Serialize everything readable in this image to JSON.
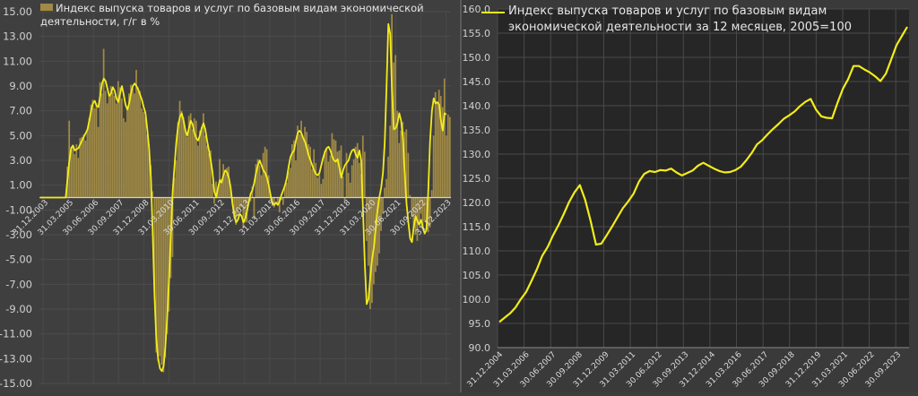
{
  "chart_data": [
    {
      "type": "bar+line",
      "title": "Индекс выпуска товаров и услуг по базовым видам экономической деятельности, г/г в %",
      "legend": [
        "Индекс выпуска товаров и услуг по базовым видам экономической деятельности, г/г в %"
      ],
      "legend_position": "top-left-inside",
      "xlabel": "",
      "ylabel": "",
      "ylim": [
        -15,
        15
      ],
      "y_ticks": [
        "15.00",
        "13.00",
        "11.00",
        "9.00",
        "7.00",
        "5.00",
        "3.00",
        "1.00",
        "-1.00",
        "-3.00",
        "-5.00",
        "-7.00",
        "-9.00",
        "-11.00",
        "-13.00",
        "-15.00"
      ],
      "x_ticks": [
        "31.12.2003",
        "31.03.2005",
        "30.06.2006",
        "30.09.2007",
        "31.12.2008",
        "31.03.2010",
        "30.06.2011",
        "30.09.2012",
        "31.12.2013",
        "31.03.2015",
        "30.06.2016",
        "30.09.2017",
        "31.12.2018",
        "31.03.2020",
        "30.06.2021",
        "30.09.2022",
        "31.12.2023"
      ],
      "grid": true,
      "bar_color": "#a08a45",
      "line_color": "#f2ec1a",
      "series_note": "Monthly bars (y/y %) with smoothed yellow line; values estimated from pixels",
      "series": [
        {
          "name": "bars_yoy_pct",
          "x_start": "2004-01",
          "frequency": "monthly",
          "values": [
            0,
            0,
            0,
            0,
            0,
            0,
            0,
            0,
            0,
            0,
            0,
            0,
            0,
            0,
            0,
            2.5,
            6.2,
            3.8,
            4.2,
            3.5,
            4.3,
            3.2,
            4.8,
            4.9,
            5.1,
            4.6,
            5.5,
            6.4,
            7.5,
            7.9,
            7.2,
            7.6,
            5.7,
            9.3,
            8.4,
            12.0,
            8.6,
            7.6,
            8.3,
            9.0,
            8.5,
            8.2,
            7.6,
            9.4,
            8.9,
            8.0,
            6.4,
            6.1,
            7.1,
            8.4,
            9.1,
            8.8,
            8.4,
            10.3,
            8.9,
            8.6,
            7.2,
            6.9,
            6.5,
            5.1,
            4.3,
            2.6,
            0.5,
            -7.5,
            -12.5,
            -13.2,
            -12.8,
            -13.5,
            -14.1,
            -12.9,
            -11.0,
            -9.2,
            -6.5,
            -4.8,
            1.6,
            3.0,
            6.1,
            7.8,
            7.0,
            6.5,
            5.5,
            4.9,
            6.6,
            6.8,
            5.5,
            6.4,
            6.2,
            4.2,
            5.4,
            5.7,
            6.8,
            5.0,
            4.2,
            3.6,
            3.8,
            1.1,
            -0.5,
            1.3,
            0.8,
            3.1,
            1.5,
            2.7,
            1.9,
            2.4,
            2.5,
            0.9,
            -0.3,
            -1.6,
            -2.2,
            -1.5,
            -1.0,
            -0.8,
            -2.5,
            -2.0,
            -2.0,
            -0.5,
            -0.3,
            0.9,
            -1.7,
            2.7,
            3.1,
            2.6,
            1.8,
            3.6,
            4.1,
            3.9,
            1.8,
            0.2,
            -0.5,
            -0.8,
            0.0,
            -0.5,
            -1.2,
            -0.2,
            -0.6,
            1.0,
            1.2,
            2.1,
            2.4,
            4.3,
            4.6,
            3.0,
            5.8,
            5.1,
            6.2,
            4.8,
            5.7,
            5.3,
            4.3,
            4.1,
            2.3,
            3.9,
            2.8,
            1.6,
            1.9,
            1.1,
            1.5,
            3.8,
            4.0,
            2.9,
            3.4,
            5.2,
            4.7,
            4.6,
            3.7,
            3.8,
            4.2,
            1.7,
            -0.2,
            3.6,
            2.0,
            1.2,
            2.6,
            3.1,
            4.1,
            4.4,
            2.8,
            1.9,
            5.0,
            3.7,
            -3.5,
            -5.5,
            -9.0,
            -8.5,
            -7.0,
            -6.0,
            -5.5,
            -4.5,
            -2.7,
            -1.3,
            0.8,
            1.5,
            3.3,
            5.8,
            14.8,
            10.9,
            11.5,
            7.0,
            4.4,
            5.4,
            6.1,
            5.3,
            5.5,
            3.6,
            0.2,
            -1.5,
            -2.5,
            -3.0,
            -3.5,
            -2.0,
            -1.3,
            -2.6,
            -1.9,
            -2.0,
            -2.8,
            -2.4,
            0.6,
            5.0,
            8.5,
            7.6,
            8.7,
            8.2,
            7.3,
            9.6,
            5.0,
            6.7,
            6.5
          ]
        },
        {
          "name": "smoothed_line_yoy_pct",
          "x_start": "2004-01",
          "frequency": "monthly",
          "values": [
            0,
            0,
            0,
            0,
            0,
            0,
            0,
            0,
            0,
            0,
            0,
            0,
            0,
            0,
            0,
            1.5,
            3.0,
            4.0,
            4.2,
            3.8,
            3.9,
            4.0,
            4.3,
            4.6,
            4.9,
            5.2,
            5.5,
            6.2,
            7.0,
            7.6,
            7.8,
            7.4,
            7.3,
            8.2,
            9.2,
            9.6,
            9.4,
            8.8,
            8.2,
            8.4,
            8.9,
            8.6,
            8.0,
            7.7,
            8.4,
            9.0,
            8.3,
            7.5,
            7.1,
            7.6,
            8.4,
            9.0,
            9.2,
            9.0,
            8.7,
            8.3,
            7.9,
            7.3,
            6.8,
            5.5,
            4.0,
            1.5,
            -3.0,
            -8.0,
            -11.5,
            -13.0,
            -13.8,
            -14.0,
            -13.6,
            -12.0,
            -9.5,
            -6.5,
            -3.0,
            0.5,
            2.5,
            4.5,
            5.8,
            6.5,
            6.8,
            6.2,
            5.4,
            5.0,
            5.6,
            6.2,
            5.9,
            5.2,
            4.8,
            4.6,
            5.0,
            5.6,
            6.0,
            5.5,
            4.6,
            3.8,
            3.0,
            2.0,
            0.5,
            0.0,
            0.8,
            1.4,
            1.2,
            1.8,
            2.2,
            2.0,
            1.6,
            0.8,
            -0.5,
            -1.5,
            -2.0,
            -1.8,
            -1.3,
            -1.5,
            -2.0,
            -1.7,
            -1.1,
            -0.4,
            0.3,
            0.6,
            1.2,
            2.0,
            2.6,
            3.0,
            2.6,
            2.2,
            2.0,
            1.6,
            1.0,
            0.2,
            -0.5,
            -0.6,
            -0.4,
            -0.6,
            -0.3,
            0.2,
            0.6,
            1.0,
            1.6,
            2.5,
            3.3,
            3.6,
            3.8,
            4.6,
            5.2,
            5.4,
            5.2,
            4.8,
            4.5,
            4.0,
            3.4,
            3.0,
            2.6,
            2.2,
            1.9,
            1.8,
            2.0,
            2.6,
            3.2,
            3.7,
            4.0,
            4.1,
            3.8,
            3.3,
            3.0,
            2.9,
            3.1,
            2.4,
            1.6,
            2.2,
            2.6,
            2.8,
            3.0,
            3.5,
            3.8,
            3.9,
            3.5,
            3.2,
            3.8,
            3.0,
            -1.0,
            -5.5,
            -8.6,
            -8.2,
            -6.5,
            -5.0,
            -4.0,
            -2.5,
            -1.0,
            0.0,
            0.8,
            2.0,
            4.5,
            9.0,
            14.0,
            13.2,
            8.5,
            5.5,
            5.6,
            6.0,
            6.8,
            6.2,
            4.8,
            2.0,
            -0.5,
            -2.0,
            -3.3,
            -3.6,
            -2.4,
            -1.5,
            -1.9,
            -2.2,
            -1.8,
            -2.4,
            -2.9,
            -2.6,
            0.5,
            4.5,
            7.0,
            8.0,
            7.6,
            7.7,
            7.5,
            6.2,
            5.4,
            6.8,
            6.7
          ]
        }
      ]
    },
    {
      "type": "line",
      "title": "Индекс выпуска товаров и услуг по базовым видам экономической деятельности за 12 месяцев, 2005=100",
      "legend": [
        "Индекс выпуска товаров и услуг по базовым видам экономической деятельности за 12 месяцев, 2005=100"
      ],
      "legend_position": "top-left-inside",
      "xlabel": "",
      "ylabel": "",
      "ylim": [
        90,
        160
      ],
      "y_ticks": [
        "160.0",
        "155.0",
        "150.0",
        "145.0",
        "140.0",
        "135.0",
        "130.0",
        "125.0",
        "120.0",
        "115.0",
        "110.0",
        "105.0",
        "100.0",
        "95.0",
        "90.0"
      ],
      "x_ticks": [
        "31.12.2004",
        "31.03.2006",
        "30.06.2007",
        "30.09.2008",
        "31.12.2009",
        "31.03.2011",
        "30.06.2012",
        "30.09.2013",
        "31.12.2014",
        "31.03.2016",
        "30.06.2017",
        "30.09.2018",
        "31.12.2019",
        "31.03.2021",
        "30.06.2022",
        "30.09.2023"
      ],
      "grid": true,
      "line_color": "#f2ec1a",
      "series": [
        {
          "name": "index_12m_2005_100",
          "x_start": "2004-12",
          "frequency": "quarterly",
          "values": [
            95.3,
            96.2,
            97.1,
            98.3,
            100.0,
            101.5,
            103.8,
            106.2,
            109.0,
            110.8,
            113.2,
            115.3,
            117.6,
            120.1,
            122.1,
            123.6,
            120.5,
            116.2,
            111.3,
            111.5,
            113.2,
            115.0,
            116.9,
            118.8,
            120.2,
            121.8,
            124.3,
            125.9,
            126.5,
            126.3,
            126.7,
            126.6,
            127.0,
            126.2,
            125.6,
            126.1,
            126.6,
            127.6,
            128.2,
            127.6,
            127.0,
            126.5,
            126.2,
            126.3,
            126.7,
            127.4,
            128.7,
            130.2,
            132.0,
            132.9,
            134.1,
            135.2,
            136.2,
            137.3,
            138.0,
            138.8,
            139.9,
            140.8,
            141.4,
            139.2,
            137.8,
            137.5,
            137.4,
            140.6,
            143.5,
            145.5,
            148.2,
            148.2,
            147.5,
            146.9,
            146.1,
            145.1,
            146.6,
            149.5,
            152.5,
            154.4,
            156.3
          ]
        }
      ]
    }
  ]
}
